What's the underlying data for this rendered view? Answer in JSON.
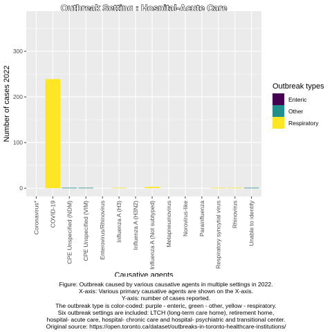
{
  "chart_data": {
    "type": "bar",
    "title": "Outbreak Setting : Hospital-Acute Care",
    "xlabel": "Causative agents",
    "ylabel": "Number of cases 2022",
    "categories": [
      "Coronavirus*",
      "COVID-19",
      "CPE Unspecified (NDM)",
      "CPE Unspecified (VIM)",
      "Enterovirus/Rhinovirus",
      "Influenza A (H3)",
      "Influenza A (H3N2)",
      "Influenza A (Not subtyped)",
      "Metapneumovirus",
      "Norovirus-like",
      "Parainfluenza",
      "Respiratory syncytial virus",
      "Rhinovirus",
      "Unable to identify"
    ],
    "series": [
      {
        "name": "Enteric",
        "color": "#440154",
        "values": [
          0,
          0,
          0,
          0,
          0,
          0,
          0,
          0,
          0,
          0,
          0,
          0,
          0,
          0
        ]
      },
      {
        "name": "Other",
        "color": "#21908C",
        "values": [
          0,
          0,
          1,
          1,
          0,
          0,
          0,
          0,
          0,
          0,
          0,
          0,
          0,
          1
        ]
      },
      {
        "name": "Respiratory",
        "color": "#FDE725",
        "values": [
          0,
          239,
          0,
          0,
          0,
          1,
          0,
          3,
          0,
          0,
          0,
          1,
          1,
          0
        ]
      }
    ],
    "yticks": [
      0,
      100,
      200,
      300
    ],
    "ylim": [
      -18,
      388
    ],
    "grid": true,
    "legend": {
      "title": "Outbreak types",
      "position": "right"
    }
  },
  "caption": [
    "Figure: Outbreak caused by various causative agents in multiple settings in 2022.",
    "X-axis: Various primary causative agents are shown on the X-axis.",
    "Y-axis: number of cases reported.",
    "The outbreak type is color-coded: purple - enteric, green - other, yellow - respiratory.",
    "Six outbreak settings are included: LTCH (long-term care home), retirement home,",
    "hospital- acute care, hospital- chronic care and hospital- psychiatric and transitional center.",
    "Original source: https://open.toronto.ca/dataset/outbreaks-in-toronto-healthcare-institutions/"
  ]
}
